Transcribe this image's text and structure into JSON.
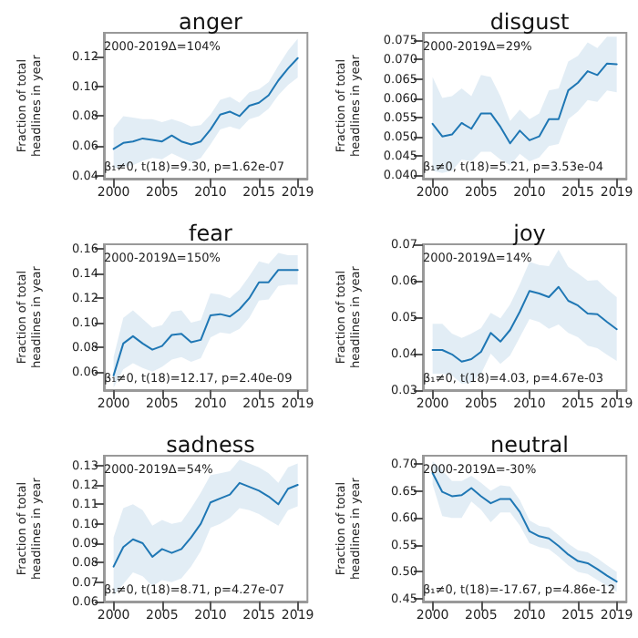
{
  "chart_data": [
    {
      "type": "line",
      "title": "anger",
      "ylabel": "Fraction of total\nheadlines in year",
      "annotations": [
        "2000-2019Δ=104%",
        "β₁≠0, t(18)=9.30, p=1.62e-07"
      ],
      "x": [
        2000,
        2001,
        2002,
        2003,
        2004,
        2005,
        2006,
        2007,
        2008,
        2009,
        2010,
        2011,
        2012,
        2013,
        2014,
        2015,
        2016,
        2017,
        2018,
        2019
      ],
      "xlim": [
        1999,
        2020
      ],
      "xticks": [
        2000,
        2005,
        2010,
        2015,
        2019
      ],
      "ylim": [
        0.038,
        0.136
      ],
      "yticks": [
        0.04,
        0.06,
        0.08,
        {
          "value": 0.1,
          "label": "0.10"
        },
        0.12
      ],
      "grid": false,
      "marker": "none",
      "line_style": "solid",
      "series": [
        {
          "color": "#1f77b4",
          "values": [
            0.058,
            0.062,
            0.063,
            0.065,
            0.064,
            0.063,
            0.067,
            0.063,
            0.061,
            0.063,
            0.071,
            0.081,
            0.083,
            0.08,
            0.087,
            0.089,
            0.094,
            0.104,
            0.112,
            0.119
          ],
          "upper": [
            0.072,
            0.08,
            0.079,
            0.078,
            0.078,
            0.076,
            0.078,
            0.076,
            0.073,
            0.074,
            0.081,
            0.091,
            0.093,
            0.089,
            0.096,
            0.098,
            0.103,
            0.114,
            0.124,
            0.132
          ],
          "lower": [
            0.045,
            0.046,
            0.047,
            0.05,
            0.052,
            0.051,
            0.055,
            0.052,
            0.049,
            0.052,
            0.061,
            0.071,
            0.073,
            0.071,
            0.078,
            0.08,
            0.085,
            0.094,
            0.101,
            0.106
          ]
        }
      ]
    },
    {
      "type": "line",
      "title": "disgust",
      "ylabel": "Fraction of total\nheadlines in year",
      "annotations": [
        "2000-2019Δ=29%",
        "β₁≠0, t(18)=5.21, p=3.53e-04"
      ],
      "x": [
        2000,
        2001,
        2002,
        2003,
        2004,
        2005,
        2006,
        2007,
        2008,
        2009,
        2010,
        2011,
        2012,
        2013,
        2014,
        2015,
        2016,
        2017,
        2018,
        2019
      ],
      "xlim": [
        1999,
        2020
      ],
      "xticks": [
        2000,
        2005,
        2010,
        2015,
        2019
      ],
      "ylim": [
        0.039,
        0.077
      ],
      "yticks": [
        {
          "value": 0.04,
          "label": "0.040"
        },
        0.045,
        {
          "value": 0.05,
          "label": "0.050"
        },
        0.055,
        {
          "value": 0.06,
          "label": "0.060"
        },
        0.065,
        {
          "value": 0.07,
          "label": "0.070"
        },
        0.075
      ],
      "grid": false,
      "marker": "none",
      "line_style": "solid",
      "series": [
        {
          "color": "#1f77b4",
          "values": [
            0.0533,
            0.05,
            0.0505,
            0.0535,
            0.052,
            0.056,
            0.056,
            0.0525,
            0.0482,
            0.0515,
            0.049,
            0.05,
            0.0545,
            0.0545,
            0.062,
            0.064,
            0.067,
            0.066,
            0.069,
            0.0688
          ],
          "upper": [
            0.0655,
            0.06,
            0.0605,
            0.0625,
            0.0605,
            0.066,
            0.0655,
            0.0605,
            0.054,
            0.057,
            0.0545,
            0.056,
            0.062,
            0.0625,
            0.0695,
            0.071,
            0.0745,
            0.073,
            0.076,
            0.076
          ],
          "lower": [
            0.041,
            0.0405,
            0.041,
            0.044,
            0.0435,
            0.046,
            0.046,
            0.044,
            0.0425,
            0.0455,
            0.0435,
            0.0445,
            0.0475,
            0.048,
            0.0545,
            0.0565,
            0.0595,
            0.059,
            0.062,
            0.0615
          ]
        }
      ]
    },
    {
      "type": "line",
      "title": "fear",
      "ylabel": "Fraction of total\nheadlines in year",
      "annotations": [
        "2000-2019Δ=150%",
        "β₁≠0, t(18)=12.17, p=2.40e-09"
      ],
      "x": [
        2000,
        2001,
        2002,
        2003,
        2004,
        2005,
        2006,
        2007,
        2008,
        2009,
        2010,
        2011,
        2012,
        2013,
        2014,
        2015,
        2016,
        2017,
        2018,
        2019
      ],
      "xlim": [
        1999,
        2020
      ],
      "xticks": [
        2000,
        2005,
        2010,
        2015,
        2019
      ],
      "ylim": [
        0.045,
        0.164
      ],
      "yticks": [
        0.06,
        0.08,
        {
          "value": 0.1,
          "label": "0.10"
        },
        0.12,
        0.14,
        0.16
      ],
      "grid": false,
      "marker": "none",
      "line_style": "solid",
      "series": [
        {
          "color": "#1f77b4",
          "values": [
            0.057,
            0.083,
            0.089,
            0.083,
            0.078,
            0.081,
            0.09,
            0.091,
            0.084,
            0.086,
            0.106,
            0.107,
            0.105,
            0.111,
            0.12,
            0.133,
            0.133,
            0.143,
            0.143,
            0.143
          ],
          "upper": [
            0.072,
            0.104,
            0.11,
            0.103,
            0.096,
            0.098,
            0.109,
            0.11,
            0.1,
            0.102,
            0.124,
            0.123,
            0.12,
            0.127,
            0.138,
            0.15,
            0.148,
            0.157,
            0.155,
            0.155
          ],
          "lower": [
            0.047,
            0.062,
            0.067,
            0.063,
            0.06,
            0.064,
            0.07,
            0.072,
            0.068,
            0.071,
            0.088,
            0.092,
            0.091,
            0.095,
            0.104,
            0.118,
            0.119,
            0.13,
            0.131,
            0.131
          ]
        }
      ]
    },
    {
      "type": "line",
      "title": "joy",
      "ylabel": "Fraction of total\nheadlines in year",
      "annotations": [
        "2000-2019Δ=14%",
        "β₁≠0, t(18)=4.03, p=4.67e-03"
      ],
      "x": [
        2000,
        2001,
        2002,
        2003,
        2004,
        2005,
        2006,
        2007,
        2008,
        2009,
        2010,
        2011,
        2012,
        2013,
        2014,
        2015,
        2016,
        2017,
        2018,
        2019
      ],
      "xlim": [
        1999,
        2020
      ],
      "xticks": [
        2000,
        2005,
        2010,
        2015,
        2019
      ],
      "ylim": [
        0.03,
        0.07
      ],
      "yticks": [
        0.03,
        0.04,
        0.05,
        0.06,
        0.07
      ],
      "grid": false,
      "marker": "none",
      "line_style": "solid",
      "series": [
        {
          "color": "#1f77b4",
          "values": [
            0.041,
            0.041,
            0.0398,
            0.0378,
            0.0385,
            0.0405,
            0.0457,
            0.0433,
            0.0465,
            0.0515,
            0.0572,
            0.0565,
            0.0555,
            0.0583,
            0.0545,
            0.0532,
            0.051,
            0.0508,
            0.0487,
            0.0467
          ],
          "upper": [
            0.0482,
            0.0482,
            0.0455,
            0.0443,
            0.0455,
            0.047,
            0.0512,
            0.0497,
            0.0535,
            0.059,
            0.0652,
            0.0643,
            0.064,
            0.0685,
            0.0638,
            0.062,
            0.06,
            0.0602,
            0.0577,
            0.0555
          ],
          "lower": [
            0.0345,
            0.0345,
            0.034,
            0.0318,
            0.032,
            0.0345,
            0.04,
            0.0372,
            0.0395,
            0.0445,
            0.0495,
            0.0487,
            0.0468,
            0.048,
            0.0457,
            0.0445,
            0.0422,
            0.0415,
            0.0397,
            0.038
          ]
        }
      ]
    },
    {
      "type": "line",
      "title": "sadness",
      "ylabel": "Fraction of total\nheadlines in year",
      "annotations": [
        "2000-2019Δ=54%",
        "β₁≠0, t(18)=8.71, p=4.27e-07"
      ],
      "x": [
        2000,
        2001,
        2002,
        2003,
        2004,
        2005,
        2006,
        2007,
        2008,
        2009,
        2010,
        2011,
        2012,
        2013,
        2014,
        2015,
        2016,
        2017,
        2018,
        2019
      ],
      "xlim": [
        1999,
        2020
      ],
      "xticks": [
        2000,
        2005,
        2010,
        2015,
        2019
      ],
      "ylim": [
        0.06,
        0.135
      ],
      "yticks": [
        0.06,
        0.07,
        0.08,
        0.09,
        {
          "value": 0.1,
          "label": "0.10"
        },
        0.11,
        0.12,
        0.13
      ],
      "grid": false,
      "marker": "none",
      "line_style": "solid",
      "series": [
        {
          "color": "#1f77b4",
          "values": [
            0.078,
            0.088,
            0.092,
            0.09,
            0.083,
            0.087,
            0.085,
            0.087,
            0.093,
            0.1,
            0.111,
            0.113,
            0.115,
            0.121,
            0.119,
            0.117,
            0.114,
            0.11,
            0.118,
            0.12
          ],
          "upper": [
            0.093,
            0.108,
            0.11,
            0.107,
            0.099,
            0.102,
            0.1,
            0.101,
            0.108,
            0.116,
            0.125,
            0.126,
            0.127,
            0.133,
            0.131,
            0.129,
            0.126,
            0.121,
            0.129,
            0.131
          ],
          "lower": [
            0.063,
            0.069,
            0.075,
            0.073,
            0.068,
            0.071,
            0.07,
            0.072,
            0.078,
            0.086,
            0.098,
            0.1,
            0.103,
            0.108,
            0.107,
            0.105,
            0.102,
            0.099,
            0.107,
            0.109
          ]
        }
      ]
    },
    {
      "type": "line",
      "title": "neutral",
      "ylabel": "Fraction of total\nheadlines in year",
      "annotations": [
        "2000-2019Δ=-30%",
        "β₁≠0, t(18)=-17.67, p=4.86e-12"
      ],
      "x": [
        2000,
        2001,
        2002,
        2003,
        2004,
        2005,
        2006,
        2007,
        2008,
        2009,
        2010,
        2011,
        2012,
        2013,
        2014,
        2015,
        2016,
        2017,
        2018,
        2019
      ],
      "xlim": [
        1999,
        2020
      ],
      "xticks": [
        2000,
        2005,
        2010,
        2015,
        2019
      ],
      "ylim": [
        0.445,
        0.715
      ],
      "yticks": [
        0.45,
        {
          "value": 0.5,
          "label": "0.50"
        },
        0.55,
        {
          "value": 0.6,
          "label": "0.60"
        },
        0.65,
        {
          "value": 0.7,
          "label": "0.70"
        }
      ],
      "grid": false,
      "marker": "none",
      "line_style": "solid",
      "series": [
        {
          "color": "#1f77b4",
          "values": [
            0.683,
            0.648,
            0.64,
            0.642,
            0.655,
            0.64,
            0.627,
            0.635,
            0.635,
            0.611,
            0.575,
            0.566,
            0.562,
            0.548,
            0.532,
            0.52,
            0.516,
            0.505,
            0.493,
            0.482
          ],
          "upper": [
            0.705,
            0.688,
            0.668,
            0.668,
            0.678,
            0.665,
            0.65,
            0.66,
            0.658,
            0.633,
            0.595,
            0.585,
            0.582,
            0.568,
            0.552,
            0.54,
            0.536,
            0.525,
            0.512,
            0.5
          ],
          "lower": [
            0.662,
            0.603,
            0.6,
            0.6,
            0.63,
            0.615,
            0.592,
            0.61,
            0.61,
            0.586,
            0.553,
            0.546,
            0.542,
            0.528,
            0.512,
            0.5,
            0.496,
            0.485,
            0.474,
            0.463
          ]
        }
      ]
    }
  ]
}
